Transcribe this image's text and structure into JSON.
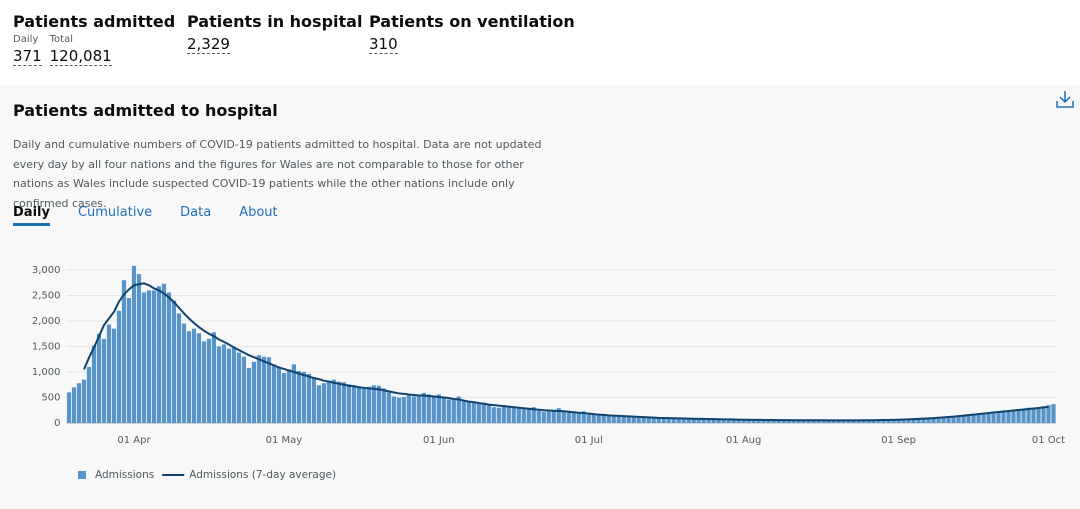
{
  "header": {
    "stats": [
      {
        "title": "Patients admitted",
        "items": [
          {
            "label": "Daily",
            "value": "371"
          },
          {
            "label": "Total",
            "value": "120,081"
          }
        ]
      },
      {
        "title": "Patients in hospital",
        "items": [
          {
            "value": "2,329"
          }
        ]
      },
      {
        "title": "Patients on ventilation",
        "items": [
          {
            "value": "310"
          }
        ]
      }
    ]
  },
  "card": {
    "title": "Patients admitted to hospital",
    "description": "Daily and cumulative numbers of COVID-19 patients admitted to hospital. Data are not updated every day by all four nations and the figures for Wales are not comparable to those for other nations as Wales include suspected COVID-19 patients while the other nations include only confirmed cases.",
    "tabs": [
      "Daily",
      "Cumulative",
      "Data",
      "About"
    ]
  },
  "chart_data": {
    "type": "bar",
    "grid": true,
    "legend": "bottom-left",
    "categories": [
      null,
      null,
      null,
      null,
      null,
      null,
      null,
      null,
      null,
      null,
      null,
      null,
      null,
      "01 Apr",
      null,
      null,
      null,
      null,
      null,
      null,
      null,
      null,
      null,
      null,
      null,
      null,
      null,
      null,
      null,
      null,
      null,
      null,
      null,
      null,
      null,
      null,
      null,
      null,
      null,
      null,
      null,
      null,
      null,
      "01 May",
      null,
      null,
      null,
      null,
      null,
      null,
      null,
      null,
      null,
      null,
      null,
      null,
      null,
      null,
      null,
      null,
      null,
      null,
      null,
      null,
      null,
      null,
      null,
      null,
      null,
      null,
      null,
      null,
      null,
      null,
      "01 Jun",
      null,
      null,
      null,
      null,
      null,
      null,
      null,
      null,
      null,
      null,
      null,
      null,
      null,
      null,
      null,
      null,
      null,
      null,
      null,
      null,
      null,
      null,
      null,
      null,
      null,
      null,
      null,
      null,
      null,
      "01 Jul",
      null,
      null,
      null,
      null,
      null,
      null,
      null,
      null,
      null,
      null,
      null,
      null,
      null,
      null,
      null,
      null,
      null,
      null,
      null,
      null,
      null,
      null,
      null,
      null,
      null,
      null,
      null,
      null,
      null,
      null,
      "01 Aug",
      null,
      null,
      null,
      null,
      null,
      null,
      null,
      null,
      null,
      null,
      null,
      null,
      null,
      null,
      null,
      null,
      null,
      null,
      null,
      null,
      null,
      null,
      null,
      null,
      null,
      null,
      null,
      null,
      null,
      null,
      "01 Sep",
      null,
      null,
      null,
      null,
      null,
      null,
      null,
      null,
      null,
      null,
      null,
      null,
      null,
      null,
      null,
      null,
      null,
      null,
      null,
      null,
      null,
      null,
      null,
      null,
      null,
      null,
      null,
      null,
      null,
      "01 Oct",
      null
    ],
    "ylim": [
      0,
      3000
    ],
    "yticks": [
      0,
      500,
      {
        "value": 1000,
        "label": "1,000"
      },
      {
        "value": 1500,
        "label": "1,500"
      },
      {
        "value": 2000,
        "label": "2,000"
      },
      {
        "value": 2500,
        "label": "2,500"
      },
      {
        "value": 3000,
        "label": "3,000"
      }
    ],
    "series": [
      {
        "name": "Admissions",
        "type": "bar",
        "color": "#5694ca",
        "values": [
          600,
          700,
          780,
          850,
          1100,
          1520,
          1750,
          1650,
          1930,
          1850,
          2200,
          2800,
          2450,
          3080,
          2920,
          2560,
          2600,
          2600,
          2680,
          2730,
          2560,
          2400,
          2150,
          1950,
          1800,
          1850,
          1760,
          1600,
          1650,
          1780,
          1500,
          1540,
          1460,
          1480,
          1380,
          1300,
          1080,
          1200,
          1330,
          1300,
          1290,
          1150,
          1100,
          980,
          1050,
          1150,
          1020,
          1000,
          960,
          900,
          740,
          780,
          830,
          850,
          810,
          800,
          760,
          740,
          690,
          700,
          710,
          740,
          730,
          680,
          600,
          520,
          500,
          510,
          560,
          520,
          540,
          590,
          560,
          520,
          560,
          500,
          460,
          470,
          520,
          430,
          410,
          390,
          380,
          390,
          360,
          310,
          300,
          330,
          330,
          300,
          290,
          270,
          280,
          310,
          240,
          220,
          230,
          250,
          290,
          240,
          220,
          200,
          200,
          230,
          180,
          170,
          170,
          160,
          160,
          140,
          150,
          140,
          130,
          120,
          110,
          110,
          110,
          110,
          100,
          100,
          95,
          95,
          90,
          85,
          80,
          80,
          80,
          78,
          75,
          75,
          70,
          70,
          70,
          68,
          68,
          62,
          60,
          60,
          58,
          56,
          58,
          60,
          58,
          55,
          55,
          54,
          55,
          55,
          54,
          54,
          52,
          52,
          50,
          50,
          50,
          52,
          52,
          50,
          50,
          52,
          55,
          55,
          58,
          60,
          62,
          65,
          68,
          72,
          75,
          80,
          85,
          90,
          95,
          100,
          110,
          120,
          130,
          140,
          150,
          160,
          170,
          180,
          190,
          200,
          210,
          220,
          230,
          240,
          250,
          260,
          270,
          280,
          300,
          280,
          300,
          330,
          350,
          371
        ]
      },
      {
        "name": "Admissions (7-day average)",
        "type": "line",
        "color": "#12436d",
        "values": [
          null,
          null,
          null,
          1050,
          1280,
          1480,
          1700,
          1920,
          2050,
          2180,
          2380,
          2520,
          2620,
          2700,
          2720,
          2740,
          2700,
          2640,
          2600,
          2540,
          2460,
          2370,
          2260,
          2150,
          2050,
          1960,
          1880,
          1810,
          1750,
          1700,
          1640,
          1590,
          1540,
          1480,
          1430,
          1380,
          1330,
          1290,
          1250,
          1210,
          1170,
          1130,
          1090,
          1060,
          1030,
          1000,
          970,
          940,
          910,
          880,
          860,
          830,
          810,
          790,
          770,
          750,
          730,
          720,
          700,
          690,
          680,
          670,
          660,
          640,
          620,
          600,
          580,
          570,
          560,
          550,
          540,
          540,
          530,
          520,
          510,
          500,
          490,
          470,
          460,
          440,
          420,
          410,
          390,
          380,
          360,
          350,
          340,
          330,
          320,
          310,
          300,
          290,
          280,
          270,
          260,
          250,
          245,
          240,
          235,
          230,
          220,
          210,
          200,
          195,
          185,
          175,
          165,
          160,
          150,
          145,
          140,
          135,
          130,
          125,
          120,
          115,
          110,
          105,
          100,
          98,
          95,
          92,
          90,
          88,
          86,
          84,
          82,
          80,
          78,
          76,
          74,
          72,
          70,
          68,
          66,
          64,
          63,
          62,
          61,
          60,
          59,
          58,
          57,
          56,
          56,
          55,
          55,
          55,
          54,
          54,
          53,
          53,
          52,
          52,
          52,
          52,
          52,
          52,
          52,
          53,
          54,
          55,
          56,
          58,
          60,
          62,
          65,
          68,
          72,
          76,
          80,
          85,
          90,
          96,
          102,
          110,
          118,
          126,
          135,
          145,
          155,
          165,
          175,
          185,
          195,
          205,
          215,
          225,
          235,
          245,
          255,
          265,
          275,
          285,
          295,
          305,
          315,
          null
        ]
      }
    ]
  }
}
